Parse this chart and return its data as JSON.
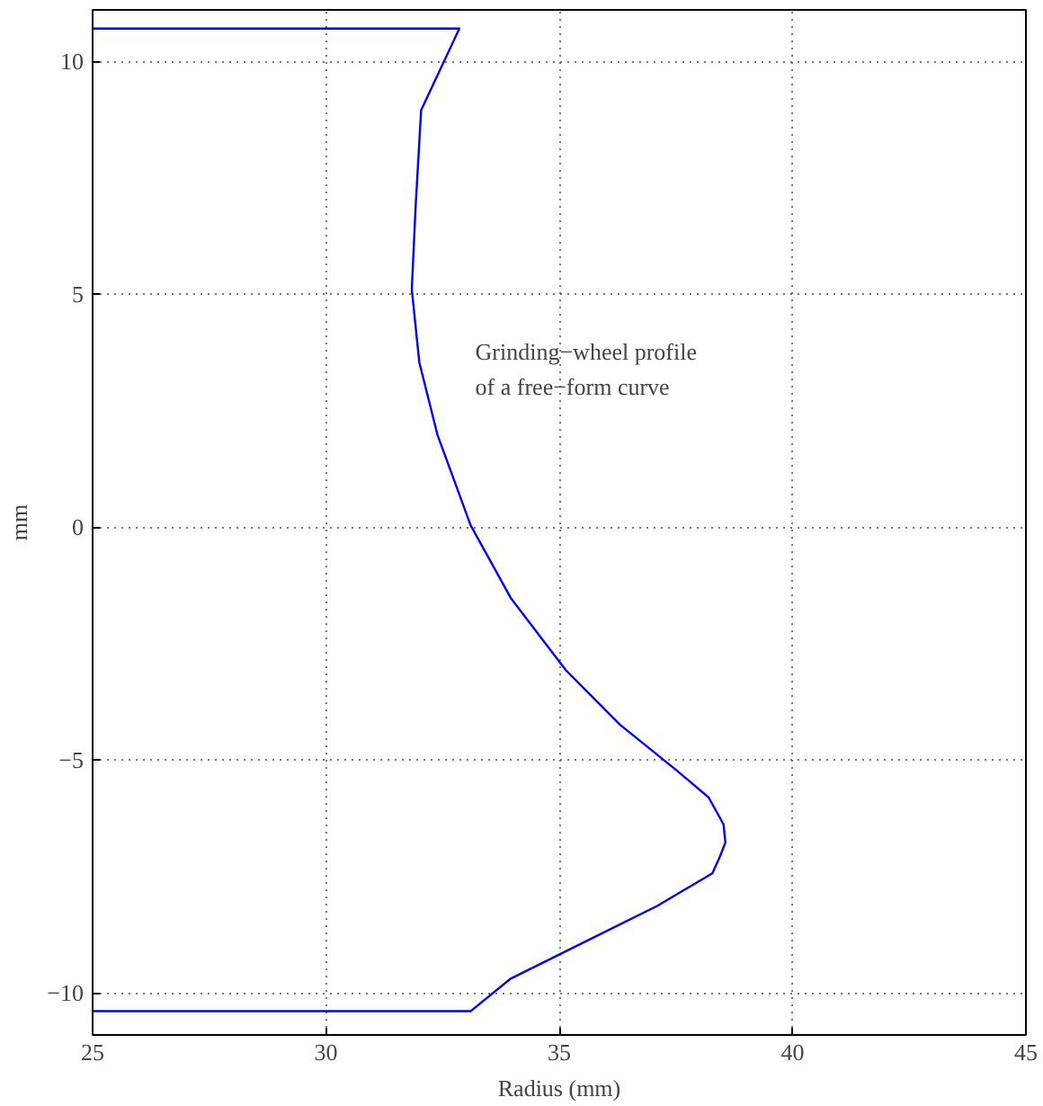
{
  "chart_data": {
    "type": "line",
    "xlabel": "Radius (mm)",
    "ylabel": "mm",
    "annotations": [
      "Grinding−wheel profile\nof a free−form curve"
    ],
    "series": [
      {
        "color": "#0000ff",
        "x": [
          25,
          32.86,
          32.04,
          31.92,
          31.84,
          32.0,
          32.39,
          33.1,
          33.96,
          35.14,
          36.3,
          37.5,
          38.2,
          38.52,
          38.56,
          38.44,
          38.28,
          37.1,
          35.53,
          33.96,
          33.1,
          25
        ],
        "values": [
          10.7,
          10.7,
          8.95,
          6.85,
          5.1,
          3.54,
          1.98,
          0.04,
          -1.52,
          -3.07,
          -4.24,
          -5.21,
          -5.8,
          -6.38,
          -6.77,
          -7.08,
          -7.43,
          -8.13,
          -8.91,
          -9.69,
          -10.39,
          -10.39
        ]
      }
    ],
    "xlim": [
      25,
      45
    ],
    "ylim": [
      -10.9,
      11.1
    ],
    "xticks": [
      25,
      30,
      35,
      40,
      45
    ],
    "yticks": [
      {
        "value": -10,
        "label": "−10"
      },
      {
        "value": -5,
        "label": "−5"
      },
      0,
      5,
      10
    ],
    "grid": true,
    "line_style": "solid"
  }
}
